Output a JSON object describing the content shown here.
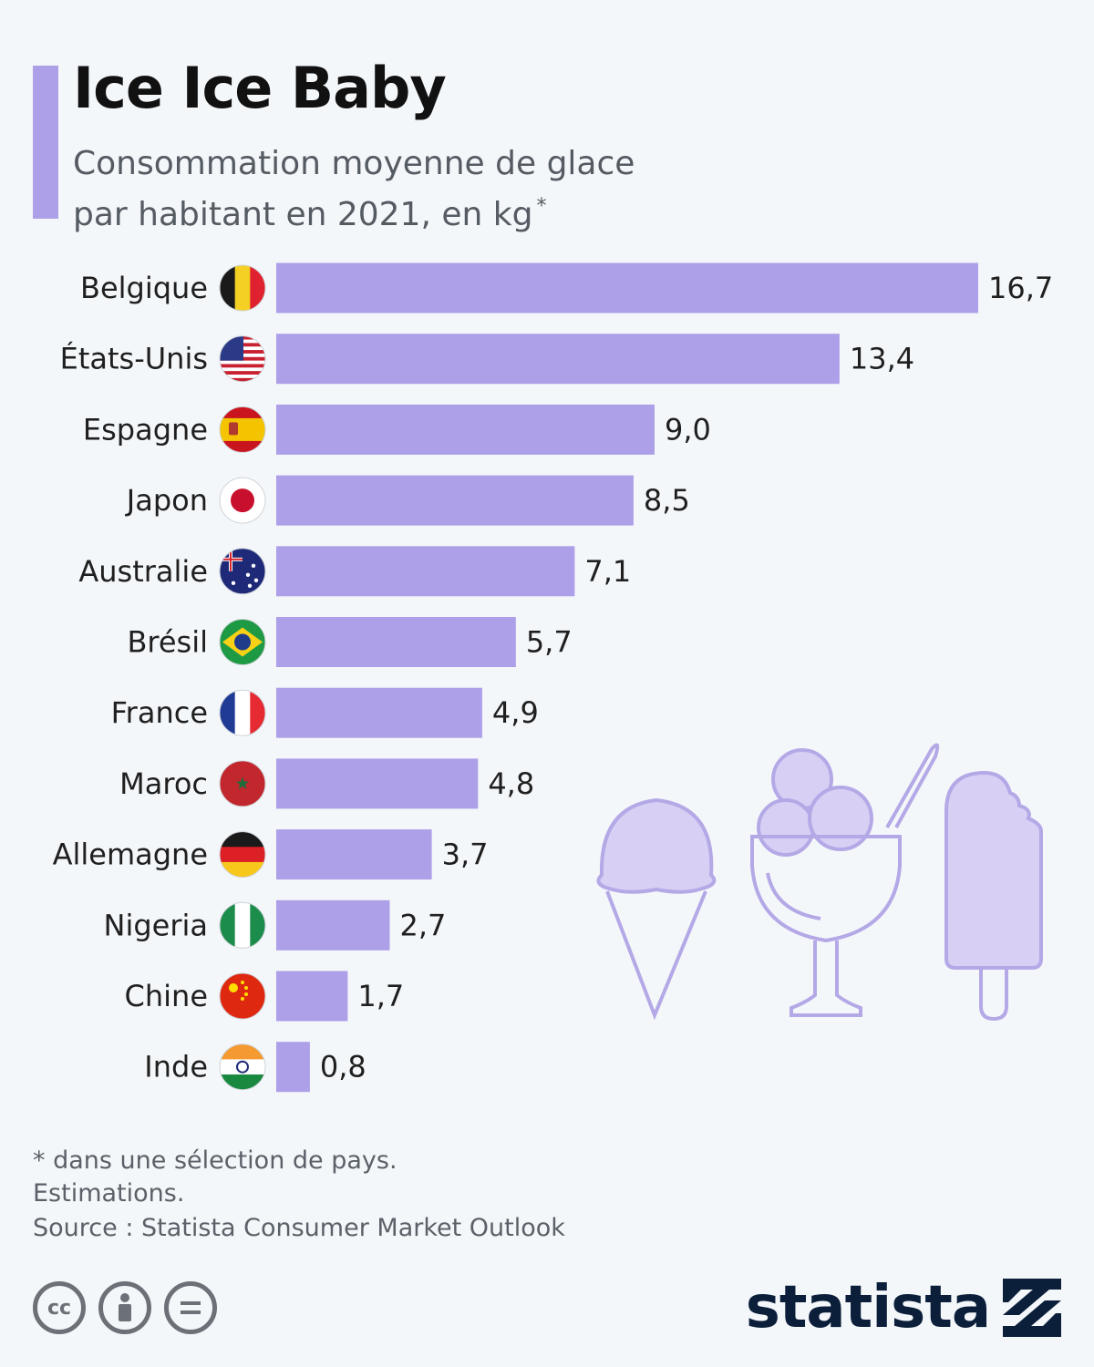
{
  "header": {
    "title": "Ice Ice Baby",
    "subtitle_line1": "Consommation moyenne de glace",
    "subtitle_line2": "par habitant en 2021, en kg",
    "subtitle_mark": "*"
  },
  "chart_data": {
    "type": "bar",
    "orientation": "horizontal",
    "title": "Ice Ice Baby",
    "subtitle": "Consommation moyenne de glace par habitant en 2021, en kg *",
    "categories": [
      "Belgique",
      "États-Unis",
      "Espagne",
      "Japon",
      "Australie",
      "Brésil",
      "France",
      "Maroc",
      "Allemagne",
      "Nigeria",
      "Chine",
      "Inde"
    ],
    "values": [
      16.7,
      13.4,
      9.0,
      8.5,
      7.1,
      5.7,
      4.9,
      4.8,
      3.7,
      2.7,
      1.7,
      0.8
    ],
    "value_labels": [
      "16,7",
      "13,4",
      "9,0",
      "8,5",
      "7,1",
      "5,7",
      "4,9",
      "4,8",
      "3,7",
      "2,7",
      "1,7",
      "0,8"
    ],
    "flags": [
      "flag-be-icon",
      "flag-us-icon",
      "flag-es-icon",
      "flag-jp-icon",
      "flag-au-icon",
      "flag-br-icon",
      "flag-fr-icon",
      "flag-ma-icon",
      "flag-de-icon",
      "flag-ng-icon",
      "flag-cn-icon",
      "flag-in-icon"
    ],
    "xlim": [
      0,
      16.7
    ],
    "bar_color": "#ad9fe8",
    "grid": false,
    "legend": "none"
  },
  "footer": {
    "note1": "* dans une sélection de pays.",
    "note2": "Estimations.",
    "source": "Source : Statista Consumer Market Outlook",
    "brand": "statista",
    "license_icons": [
      "cc-icon",
      "attribution-icon",
      "no-derivatives-icon"
    ]
  },
  "colors": {
    "accent": "#ad9fe8",
    "brand": "#0b1f3a",
    "background": "#f4f7fa"
  }
}
